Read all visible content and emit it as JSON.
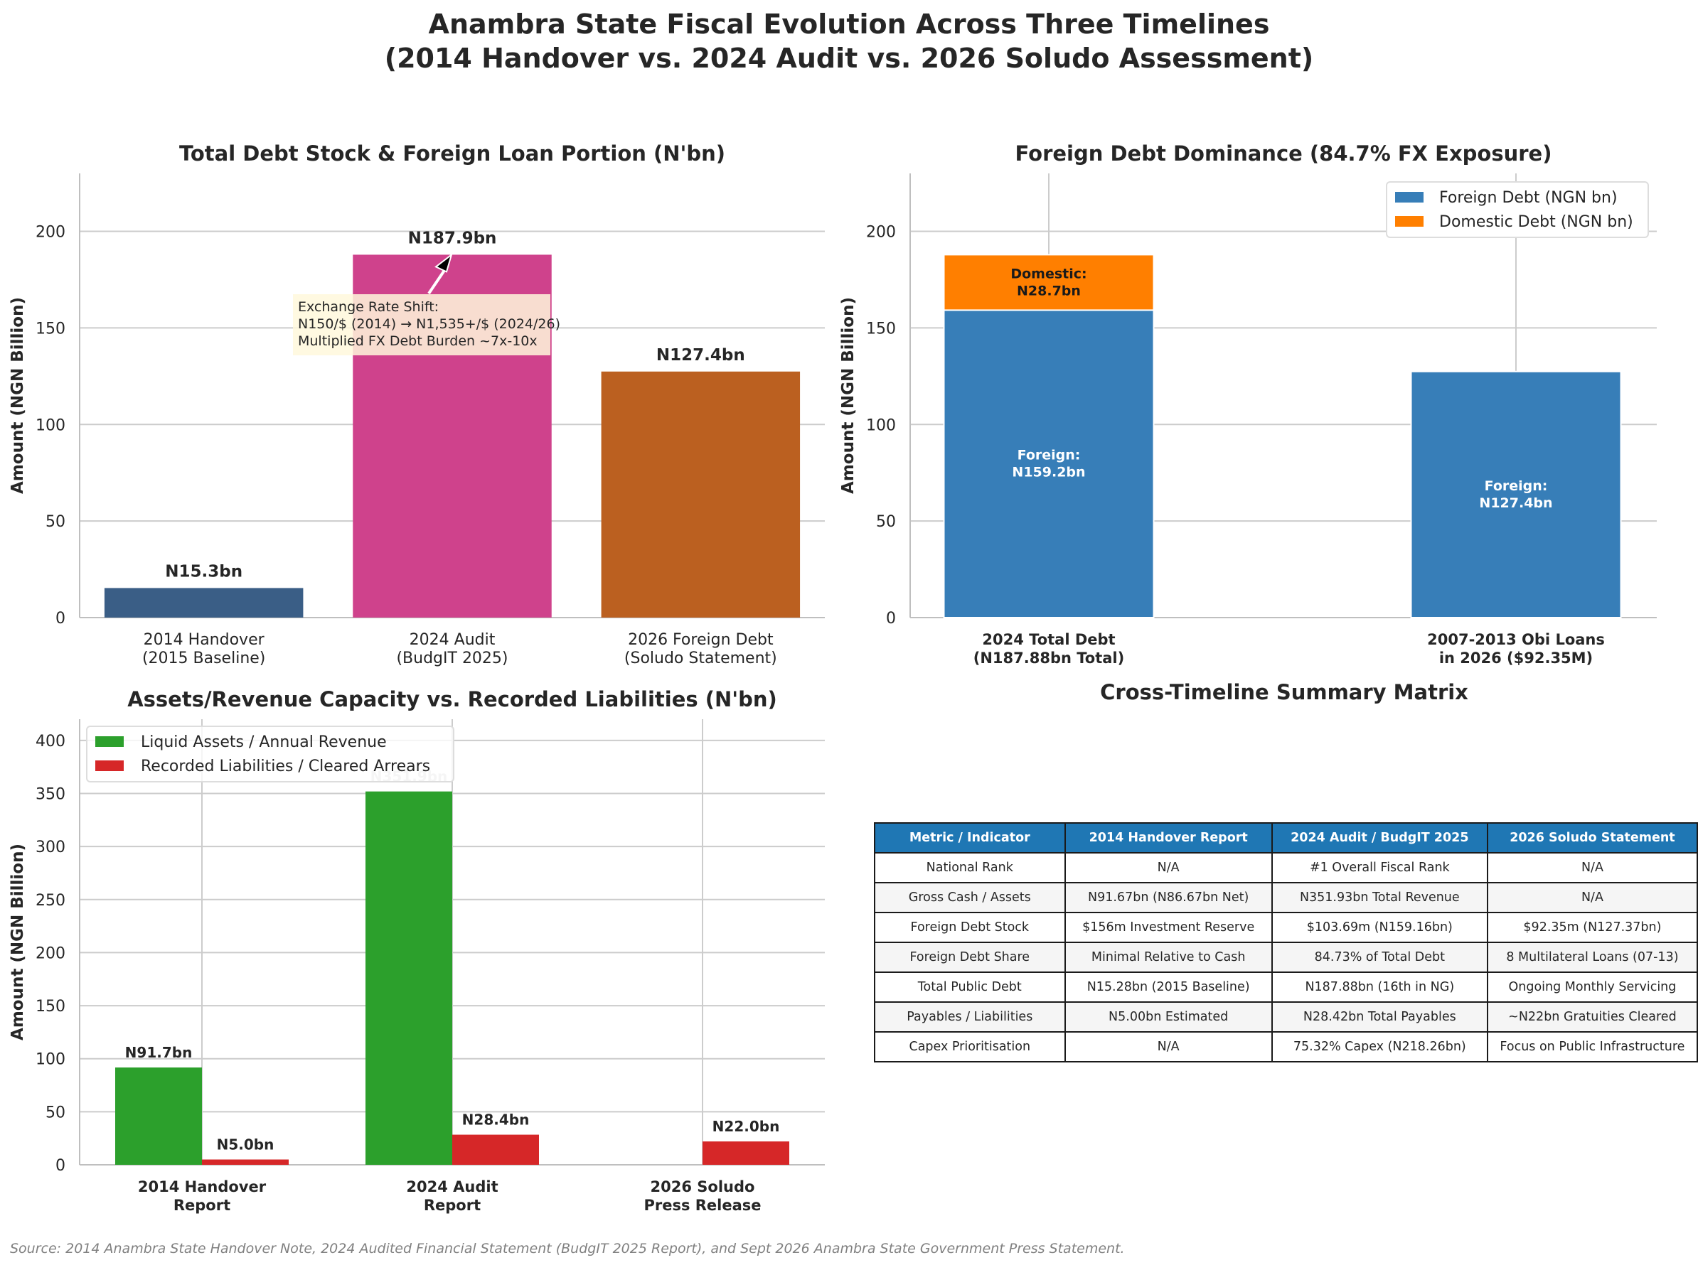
{
  "figure": {
    "title_line1": "Anambra State Fiscal Evolution Across Three Timelines",
    "title_line2": "(2014 Handover vs. 2024 Audit vs. 2026 Soludo Assessment)",
    "source": "Source: 2014 Anambra State Handover Note, 2024 Audited Financial Statement (BudgIT 2025 Report), and Sept 2026 Anambra State Government Press Statement."
  },
  "chart_data": [
    {
      "type": "bar",
      "title": "Total Debt Stock & Foreign Loan Portion (N'bn)",
      "ylabel": "Amount (NGN Billion)",
      "categories": [
        [
          "2014 Handover",
          "(2015 Baseline)"
        ],
        [
          "2024 Audit",
          "(BudgIT 2025)"
        ],
        [
          "2026 Foreign Debt",
          "(Soludo Statement)"
        ]
      ],
      "values": [
        15.3,
        187.9,
        127.4
      ],
      "data_labels": [
        "N15.3bn",
        "N187.9bn",
        "N127.4bn"
      ],
      "colors": [
        "#3a5e86",
        "#cf428c",
        "#bb6020"
      ],
      "ylim": [
        0,
        230
      ],
      "yticks": [
        0,
        50,
        100,
        150,
        200
      ],
      "grid": "y",
      "annotation": {
        "lines": [
          "Exchange Rate Shift:",
          "N150/$ (2014) → N1,535+/$ (2024/26)",
          "Multiplied FX Debt Burden ~7x-10x"
        ],
        "target_category": 1
      }
    },
    {
      "type": "bar",
      "stacked": true,
      "title": "Foreign Debt Dominance (84.7% FX Exposure)",
      "ylabel": "Amount (NGN Billion)",
      "categories": [
        [
          "2024 Total Debt",
          "(N187.88bn Total)"
        ],
        [
          "2007-2013 Obi Loans",
          "in 2026 ($92.35M)"
        ]
      ],
      "series": [
        {
          "name": "Foreign Debt (NGN bn)",
          "values": [
            159.2,
            127.4
          ],
          "color": "#377eb8",
          "labels": [
            [
              "Foreign:",
              "N159.2bn"
            ],
            [
              "Foreign:",
              "N127.4bn"
            ]
          ]
        },
        {
          "name": "Domestic Debt (NGN bn)",
          "values": [
            28.7,
            0
          ],
          "color": "#ff7f00",
          "labels": [
            [
              "Domestic:",
              "N28.7bn"
            ],
            []
          ]
        }
      ],
      "ylim": [
        0,
        230
      ],
      "yticks": [
        0,
        50,
        100,
        150,
        200
      ],
      "grid": "both",
      "legend": "top-right"
    },
    {
      "type": "bar",
      "title": "Assets/Revenue Capacity vs. Recorded Liabilities (N'bn)",
      "ylabel": "Amount (NGN Billion)",
      "categories": [
        [
          "2014 Handover",
          "Report"
        ],
        [
          "2024 Audit",
          "Report"
        ],
        [
          "2026 Soludo",
          "Press Release"
        ]
      ],
      "series": [
        {
          "name": "Liquid Assets / Annual Revenue",
          "values": [
            91.7,
            351.9,
            0
          ],
          "color": "#2ca02c",
          "labels": [
            "N91.7bn",
            "N351.9bn",
            ""
          ]
        },
        {
          "name": "Recorded Liabilities / Cleared Arrears",
          "values": [
            5.0,
            28.4,
            22.0
          ],
          "color": "#d62728",
          "labels": [
            "N5.0bn",
            "N28.4bn",
            "N22.0bn"
          ]
        }
      ],
      "ylim": [
        0,
        420
      ],
      "yticks": [
        0,
        50,
        100,
        150,
        200,
        250,
        300,
        350,
        400
      ],
      "grid": "both",
      "legend": "top-left"
    },
    {
      "type": "table",
      "title": "Cross-Timeline Summary Matrix",
      "columns": [
        "Metric / Indicator",
        "2014 Handover Report",
        "2024 Audit / BudgIT 2025",
        "2026 Soludo Statement"
      ],
      "rows": [
        [
          "National Rank",
          "N/A",
          "#1 Overall Fiscal Rank",
          "N/A"
        ],
        [
          "Gross Cash / Assets",
          "N91.67bn (N86.67bn Net)",
          "N351.93bn Total Revenue",
          "N/A"
        ],
        [
          "Foreign Debt Stock",
          "$156m Investment Reserve",
          "$103.69m (N159.16bn)",
          "$92.35m (N127.37bn)"
        ],
        [
          "Foreign Debt Share",
          "Minimal Relative to Cash",
          "84.73% of Total Debt",
          "8 Multilateral Loans (07-13)"
        ],
        [
          "Total Public Debt",
          "N15.28bn (2015 Baseline)",
          "N187.88bn (16th in NG)",
          "Ongoing Monthly Servicing"
        ],
        [
          "Payables / Liabilities",
          "N5.00bn Estimated",
          "N28.42bn Total Payables",
          "~N22bn Gratuities Cleared"
        ],
        [
          "Capex Prioritisation",
          "N/A",
          "75.32% Capex (N218.26bn)",
          "Focus on Public Infrastructure"
        ]
      ]
    }
  ]
}
